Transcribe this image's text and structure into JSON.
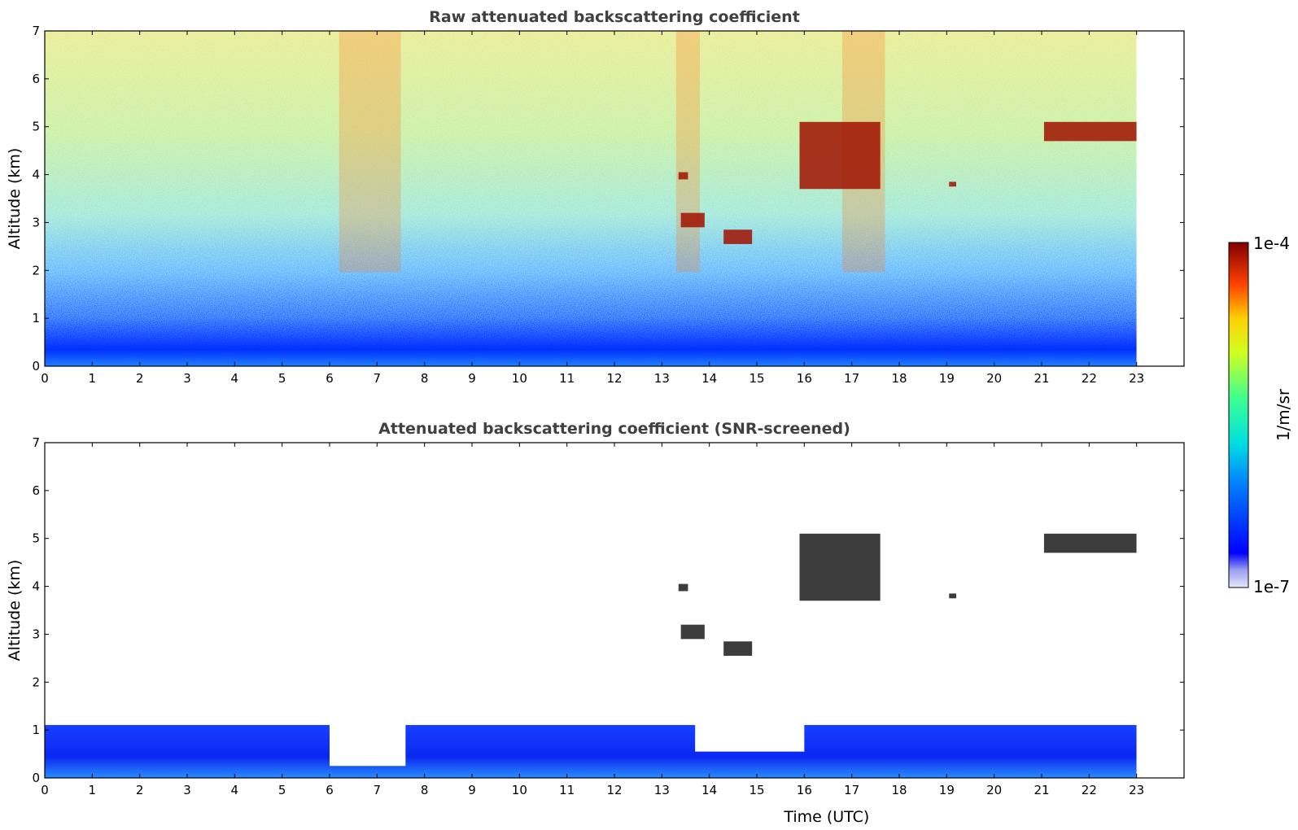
{
  "chart_data": [
    {
      "type": "heatmap",
      "title": "Raw attenuated backscattering coefficient",
      "ylabel": "Altitude (km)",
      "xlabel": "",
      "xlim": [
        0,
        24
      ],
      "ylim": [
        0,
        7
      ],
      "xticks": [
        "0",
        "1",
        "2",
        "3",
        "4",
        "5",
        "6",
        "7",
        "8",
        "9",
        "10",
        "11",
        "12",
        "13",
        "14",
        "15",
        "16",
        "17",
        "18",
        "19",
        "20",
        "21",
        "22",
        "23"
      ],
      "yticks": [
        "0",
        "1",
        "2",
        "3",
        "4",
        "5",
        "6",
        "7"
      ],
      "data_end_hour": 23,
      "features": [
        {
          "kind": "boundary_layer",
          "x": [
            0,
            23
          ],
          "y": [
            0,
            1.0
          ]
        },
        {
          "kind": "cloud",
          "x": [
            13.35,
            13.55
          ],
          "y": [
            3.9,
            4.05
          ]
        },
        {
          "kind": "cloud",
          "x": [
            13.4,
            13.9
          ],
          "y": [
            2.9,
            3.2
          ]
        },
        {
          "kind": "cloud",
          "x": [
            14.3,
            14.9
          ],
          "y": [
            2.55,
            2.85
          ]
        },
        {
          "kind": "cloud",
          "x": [
            15.9,
            17.6
          ],
          "y": [
            3.7,
            5.1
          ]
        },
        {
          "kind": "cloud",
          "x": [
            19.05,
            19.2
          ],
          "y": [
            3.75,
            3.85
          ]
        },
        {
          "kind": "cloud",
          "x": [
            21.05,
            23.0
          ],
          "y": [
            4.7,
            5.1
          ]
        }
      ]
    },
    {
      "type": "heatmap",
      "title": "Attenuated backscattering coefficient (SNR-screened)",
      "ylabel": "Altitude (km)",
      "xlabel": "Time (UTC)",
      "xlim": [
        0,
        24
      ],
      "ylim": [
        0,
        7
      ],
      "xticks": [
        "0",
        "1",
        "2",
        "3",
        "4",
        "5",
        "6",
        "7",
        "8",
        "9",
        "10",
        "11",
        "12",
        "13",
        "14",
        "15",
        "16",
        "17",
        "18",
        "19",
        "20",
        "21",
        "22",
        "23"
      ],
      "yticks": [
        "0",
        "1",
        "2",
        "3",
        "4",
        "5",
        "6",
        "7"
      ],
      "data_end_hour": 23,
      "features": [
        {
          "kind": "boundary_layer",
          "x": [
            0,
            23
          ],
          "y": [
            0,
            1.3
          ]
        },
        {
          "kind": "cloud",
          "x": [
            13.35,
            13.55
          ],
          "y": [
            3.9,
            4.05
          ]
        },
        {
          "kind": "cloud",
          "x": [
            13.4,
            13.9
          ],
          "y": [
            2.9,
            3.2
          ]
        },
        {
          "kind": "cloud",
          "x": [
            14.3,
            14.9
          ],
          "y": [
            2.55,
            2.85
          ]
        },
        {
          "kind": "cloud",
          "x": [
            15.9,
            17.6
          ],
          "y": [
            3.7,
            5.1
          ]
        },
        {
          "kind": "cloud",
          "x": [
            19.05,
            19.2
          ],
          "y": [
            3.75,
            3.85
          ]
        },
        {
          "kind": "cloud",
          "x": [
            21.05,
            23.0
          ],
          "y": [
            4.7,
            5.1
          ]
        }
      ]
    }
  ],
  "colorbar": {
    "max_label": "1e-4",
    "min_label": "1e-7",
    "unit_label": "1/m/sr",
    "colormap": "jet"
  }
}
